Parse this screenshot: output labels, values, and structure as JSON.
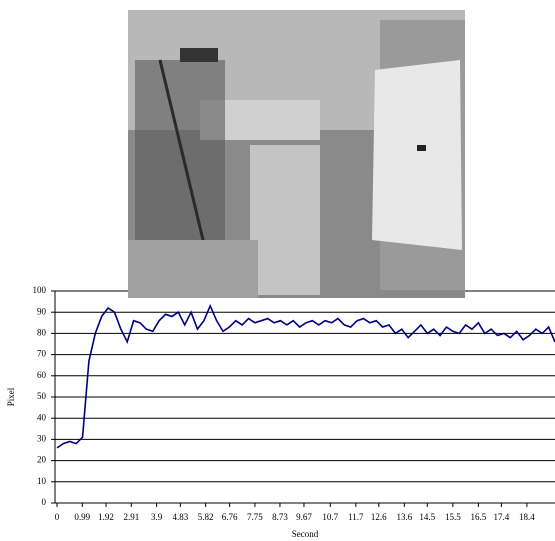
{
  "chart_data": {
    "type": "line",
    "xlabel": "Second",
    "ylabel": "Pixel",
    "x": [
      0,
      0.25,
      0.5,
      0.75,
      1,
      1.25,
      1.5,
      1.75,
      2,
      2.25,
      2.5,
      2.75,
      3,
      3.25,
      3.5,
      3.75,
      4,
      4.25,
      4.5,
      4.75,
      5,
      5.25,
      5.5,
      5.75,
      6,
      6.25,
      6.5,
      6.75,
      7,
      7.25,
      7.5,
      7.75,
      8,
      8.25,
      8.5,
      8.75,
      9,
      9.25,
      9.5,
      9.75,
      10,
      10.25,
      10.5,
      10.75,
      11,
      11.25,
      11.5,
      11.75,
      12,
      12.25,
      12.5,
      12.75,
      13,
      13.25,
      13.5,
      13.75,
      14,
      14.25,
      14.5,
      14.75,
      15,
      15.25,
      15.5,
      15.75,
      16,
      16.25,
      16.5,
      16.75,
      17,
      17.25,
      17.5,
      17.75,
      18,
      18.25,
      18.5,
      18.75,
      19,
      19.25,
      19.5
    ],
    "series": [
      {
        "color": "#000080",
        "values": [
          26,
          28,
          29,
          28,
          31,
          67,
          80,
          88,
          92,
          90,
          82,
          76,
          86,
          85,
          82,
          81,
          86,
          89,
          88,
          90,
          84,
          90,
          82,
          86,
          93,
          86,
          81,
          83,
          86,
          84,
          87,
          85,
          86,
          87,
          85,
          86,
          84,
          86,
          83,
          85,
          86,
          84,
          86,
          85,
          87,
          84,
          83,
          86,
          87,
          85,
          86,
          83,
          84,
          80,
          82,
          78,
          81,
          84,
          80,
          82,
          79,
          83,
          81,
          80,
          84,
          82,
          85,
          80,
          82,
          79,
          80,
          78,
          81,
          77,
          79,
          82,
          80,
          83,
          76
        ]
      }
    ],
    "xlim": [
      0,
      19.5
    ],
    "ylim": [
      0,
      100
    ],
    "xticks": [
      0,
      0.99,
      1.92,
      2.91,
      3.9,
      4.83,
      5.82,
      6.76,
      7.75,
      8.73,
      9.67,
      10.7,
      11.7,
      12.6,
      13.6,
      14.5,
      15.5,
      16.5,
      17.4,
      18.4
    ],
    "yticks": [
      0,
      10,
      20,
      30,
      40,
      50,
      60,
      70,
      80,
      90,
      100
    ],
    "grid": true
  }
}
